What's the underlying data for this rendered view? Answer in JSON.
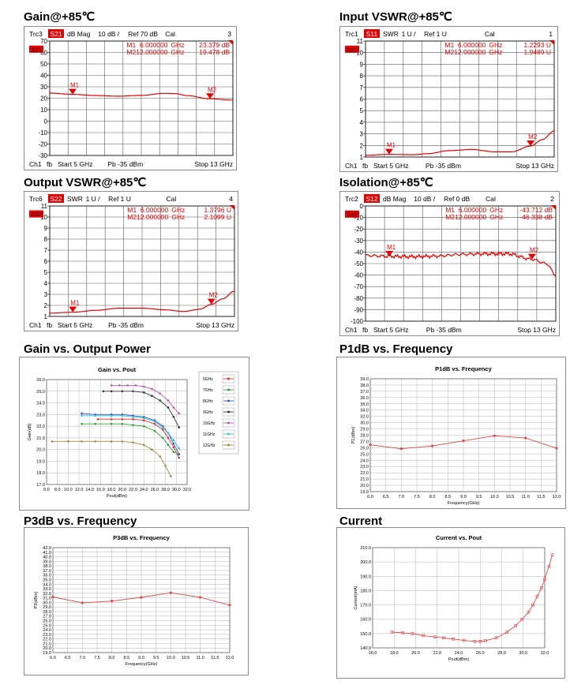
{
  "vna": [
    {
      "key": "gain",
      "title": "Gain@+85℃",
      "trace": "Trc3",
      "param": "S21",
      "format": "dB Mag",
      "scale": "10 dB /",
      "ref": "Ref 70 dB",
      "cal": "Cal",
      "channel_no": "3",
      "ch": "Ch1",
      "fb": "fb",
      "start": "Start  5 GHz",
      "power": "Pb   -35 dBm",
      "stop": "Stop  13 GHz",
      "yticks": [
        "70",
        "60",
        "50",
        "40",
        "30",
        "20",
        "10",
        "0",
        "-10",
        "-20",
        "-30"
      ],
      "ymax": 70,
      "ymin": -30,
      "markers": [
        {
          "label": "M1",
          "freq": "6.000000  GHz",
          "val": "23.379  dB",
          "x": 6,
          "y": 23.379
        },
        {
          "label": "M2",
          "freq": "12.000000  GHz",
          "val": "19.478  dB",
          "x": 12,
          "y": 19.478
        }
      ],
      "trace_points": [
        [
          5,
          24.5
        ],
        [
          6,
          23.4
        ],
        [
          7,
          22.4
        ],
        [
          8,
          21.8
        ],
        [
          9,
          22.5
        ],
        [
          10,
          24.3
        ],
        [
          10.5,
          24.0
        ],
        [
          11,
          22.3
        ],
        [
          12,
          19.5
        ],
        [
          13,
          18.4
        ]
      ]
    },
    {
      "key": "ivswr",
      "title": "Input VSWR@+85℃",
      "trace": "Trc1",
      "param": "S11",
      "format": "SWR",
      "scale": "1 U /",
      "ref": "Ref 1 U",
      "cal": "Cal",
      "channel_no": "1",
      "ch": "Ch1",
      "fb": "fb",
      "start": "Start  5 GHz",
      "power": "Pb   -35 dBm",
      "stop": "Stop  13 GHz",
      "yticks": [
        "11",
        "10",
        "9",
        "8",
        "7",
        "6",
        "5",
        "4",
        "3",
        "2",
        "1"
      ],
      "ymax": 11,
      "ymin": 1,
      "markers": [
        {
          "label": "M1",
          "freq": "6.000000  GHz",
          "val": "1.2293  U",
          "x": 6,
          "y": 1.2293
        },
        {
          "label": "M2",
          "freq": "12.000000  GHz",
          "val": "1.9489  U",
          "x": 12,
          "y": 1.9489
        }
      ],
      "trace_points": [
        [
          5,
          1.15
        ],
        [
          6,
          1.23
        ],
        [
          7,
          1.2
        ],
        [
          7.7,
          1.3
        ],
        [
          8.5,
          1.55
        ],
        [
          9.5,
          1.65
        ],
        [
          10.5,
          1.45
        ],
        [
          11.2,
          1.45
        ],
        [
          12,
          1.95
        ],
        [
          12.5,
          2.5
        ],
        [
          13,
          3.25
        ]
      ]
    },
    {
      "key": "ovswr",
      "title": "Output VSWR@+85℃",
      "trace": "Trc6",
      "param": "S22",
      "format": "SWR",
      "scale": "1 U /",
      "ref": "Ref 1 U",
      "cal": "Cal",
      "channel_no": "4",
      "ch": "Ch1",
      "fb": "fb",
      "start": "Start  5 GHz",
      "power": "Pb   -35 dBm",
      "stop": "Stop  13 GHz",
      "yticks": [
        "11",
        "10",
        "9",
        "8",
        "7",
        "6",
        "5",
        "4",
        "3",
        "2",
        "1"
      ],
      "ymax": 11,
      "ymin": 1,
      "markers": [
        {
          "label": "M1",
          "freq": "6.000000  GHz",
          "val": "1.3796  U",
          "x": 6,
          "y": 1.3796
        },
        {
          "label": "M2",
          "freq": "12.000000  GHz",
          "val": "2.1099  U",
          "x": 12,
          "y": 2.1099
        }
      ],
      "trace_points": [
        [
          5,
          1.3
        ],
        [
          6,
          1.38
        ],
        [
          7,
          1.55
        ],
        [
          8,
          1.75
        ],
        [
          9,
          1.75
        ],
        [
          10,
          1.6
        ],
        [
          10.8,
          1.45
        ],
        [
          11.5,
          1.65
        ],
        [
          12,
          2.1
        ],
        [
          12.5,
          2.6
        ],
        [
          13,
          3.3
        ]
      ]
    },
    {
      "key": "iso",
      "title": "Isolation@+85℃",
      "trace": "Trc2",
      "param": "S12",
      "format": "dB Mag",
      "scale": "10 dB /",
      "ref": "Ref 0 dB",
      "cal": "Cal",
      "channel_no": "2",
      "ch": "Ch1",
      "fb": "fb",
      "start": "Start  5 GHz",
      "power": "Pb   -35 dBm",
      "stop": "Stop  13 GHz",
      "yticks": [
        "0",
        "-10",
        "-20",
        "-30",
        "-40",
        "-50",
        "-60",
        "-70",
        "-80",
        "-90",
        "-100"
      ],
      "ymax": 0,
      "ymin": -100,
      "markers": [
        {
          "label": "M1",
          "freq": "6.000000  GHz",
          "val": "-43.712  dB",
          "x": 6,
          "y": -43.712
        },
        {
          "label": "M2",
          "freq": "12.000000  GHz",
          "val": "-46.338  dB",
          "x": 12,
          "y": -46.338
        }
      ],
      "trace_points": [
        [
          5,
          -43
        ],
        [
          6,
          -43.7
        ],
        [
          7,
          -44
        ],
        [
          8,
          -43.5
        ],
        [
          9,
          -42
        ],
        [
          10,
          -41.5
        ],
        [
          11,
          -41.5
        ],
        [
          12,
          -46.3
        ],
        [
          12.6,
          -50
        ],
        [
          13,
          -60
        ]
      ]
    }
  ],
  "chart_data": [
    {
      "key": "gvp",
      "section_title": "Gain vs. Output Power",
      "type": "line",
      "title": "Gain vs. Pout",
      "xlabel": "Pout(dBm)",
      "ylabel": "Gain(dB)",
      "xlim": [
        6,
        32
      ],
      "ylim": [
        17,
        26
      ],
      "xticks": [
        "6.0",
        "8.0",
        "10.0",
        "12.0",
        "14.0",
        "16.0",
        "18.0",
        "20.0",
        "22.0",
        "24.0",
        "26.0",
        "28.0",
        "30.0",
        "32.0"
      ],
      "yticks": [
        "17.0",
        "18.0",
        "19.0",
        "20.0",
        "21.0",
        "22.0",
        "23.0",
        "24.0",
        "25.0",
        "26.0"
      ],
      "legend": "right",
      "series": [
        {
          "name": "6GHz",
          "color": "#e03030",
          "points": [
            [
              15.5,
              22.6
            ],
            [
              18,
              22.6
            ],
            [
              20,
              22.6
            ],
            [
              22,
              22.6
            ],
            [
              24,
              22.5
            ],
            [
              26,
              22.2
            ],
            [
              27.5,
              21.7
            ],
            [
              28.5,
              21.0
            ],
            [
              29.5,
              20.2
            ],
            [
              30.5,
              19.3
            ]
          ]
        },
        {
          "name": "7GHz",
          "color": "#30a030",
          "points": [
            [
              12.5,
              22.2
            ],
            [
              15,
              22.2
            ],
            [
              18,
              22.2
            ],
            [
              20,
              22.2
            ],
            [
              22,
              22.1
            ],
            [
              24,
              22.0
            ],
            [
              26,
              21.6
            ],
            [
              27.5,
              21.0
            ],
            [
              28.5,
              20.4
            ],
            [
              29.5,
              19.8
            ],
            [
              30.5,
              19.6
            ]
          ]
        },
        {
          "name": "8GHz",
          "color": "#3050d0",
          "points": [
            [
              12.5,
              23.1
            ],
            [
              15,
              23.0
            ],
            [
              18,
              23.0
            ],
            [
              20,
              23.0
            ],
            [
              22,
              22.9
            ],
            [
              24,
              22.8
            ],
            [
              26,
              22.5
            ],
            [
              27.5,
              22.0
            ],
            [
              28.5,
              21.4
            ],
            [
              29.5,
              20.5
            ],
            [
              30.5,
              19.6
            ]
          ]
        },
        {
          "name": "9GHz",
          "color": "#333333",
          "points": [
            [
              16.5,
              25.0
            ],
            [
              18,
              25.0
            ],
            [
              20,
              25.0
            ],
            [
              22,
              25.0
            ],
            [
              24,
              24.9
            ],
            [
              25.5,
              24.6
            ],
            [
              27,
              24.2
            ],
            [
              28.5,
              23.6
            ],
            [
              29.5,
              22.8
            ],
            [
              30.5,
              21.9
            ]
          ]
        },
        {
          "name": "10GHz",
          "color": "#c050c0",
          "points": [
            [
              18,
              25.5
            ],
            [
              19.5,
              25.5
            ],
            [
              21,
              25.5
            ],
            [
              22.5,
              25.5
            ],
            [
              24,
              25.4
            ],
            [
              25.5,
              25.2
            ],
            [
              27,
              24.8
            ],
            [
              28.5,
              24.2
            ],
            [
              29.5,
              23.6
            ],
            [
              30.5,
              23.1
            ]
          ]
        },
        {
          "name": "11GHz",
          "color": "#30c0d0",
          "points": [
            [
              12.5,
              22.9
            ],
            [
              15,
              22.9
            ],
            [
              18,
              22.9
            ],
            [
              20,
              22.9
            ],
            [
              22,
              22.8
            ],
            [
              24,
              22.7
            ],
            [
              26,
              22.4
            ],
            [
              27.5,
              21.9
            ],
            [
              28.5,
              21.4
            ],
            [
              29.5,
              20.8
            ],
            [
              30.5,
              20.1
            ]
          ]
        },
        {
          "name": "12GHz",
          "color": "#a08a40",
          "points": [
            [
              7,
              20.7
            ],
            [
              10,
              20.7
            ],
            [
              12.5,
              20.7
            ],
            [
              15,
              20.7
            ],
            [
              18,
              20.7
            ],
            [
              20,
              20.7
            ],
            [
              22,
              20.6
            ],
            [
              24,
              20.4
            ],
            [
              25.5,
              20.0
            ],
            [
              27,
              19.4
            ],
            [
              28,
              18.6
            ],
            [
              29,
              17.7
            ]
          ]
        }
      ]
    },
    {
      "key": "p1db",
      "section_title": "P1dB vs. Frequency",
      "type": "line",
      "title": "P1dB vs. Frequency",
      "xlabel": "Frequency(GHz)",
      "ylabel": "P1(dBm)",
      "xlim": [
        6,
        12
      ],
      "ylim": [
        19,
        39
      ],
      "xticks": [
        "6.0",
        "6.5",
        "7.0",
        "7.5",
        "8.0",
        "8.5",
        "9.0",
        "9.5",
        "10.0",
        "10.5",
        "11.0",
        "11.5",
        "12.0"
      ],
      "yticks": [
        "19.0",
        "20.0",
        "21.0",
        "22.0",
        "23.0",
        "24.0",
        "25.0",
        "26.0",
        "27.0",
        "28.0",
        "29.0",
        "30.0",
        "32.0",
        "34.0",
        "35.0",
        "36.0",
        "37.0",
        "38.0",
        "39.0"
      ],
      "points": [
        [
          6,
          27.3
        ],
        [
          7,
          26.6
        ],
        [
          8,
          27.1
        ],
        [
          9,
          28.0
        ],
        [
          10,
          28.9
        ],
        [
          11,
          28.5
        ],
        [
          12,
          26.7
        ]
      ]
    },
    {
      "key": "p3db",
      "section_title": "P3dB vs. Frequency",
      "type": "line",
      "title": "P3dB vs. Frequency",
      "xlabel": "Frequency(GHz)",
      "ylabel": "P3(dBm)",
      "xlim": [
        6,
        12
      ],
      "ylim": [
        19,
        42
      ],
      "xticks": [
        "6.0",
        "6.5",
        "7.0",
        "7.5",
        "8.0",
        "8.5",
        "9.0",
        "9.5",
        "10.0",
        "10.5",
        "11.0",
        "11.5",
        "12.0"
      ],
      "yticks": [
        "19.0",
        "20.0",
        "21.0",
        "22.0",
        "23.0",
        "24.0",
        "25.0",
        "26.0",
        "27.0",
        "28.0",
        "29.0",
        "30.0",
        "31.0",
        "32.0",
        "33.0",
        "34.0",
        "35.0",
        "36.0",
        "37.0",
        "38.0",
        "39.0",
        "40.0",
        "41.0",
        "42.0"
      ],
      "points": [
        [
          6,
          31.2
        ],
        [
          7,
          29.9
        ],
        [
          8,
          30.3
        ],
        [
          9,
          31.1
        ],
        [
          10,
          32.1
        ],
        [
          11,
          31.1
        ],
        [
          12,
          29.4
        ]
      ]
    },
    {
      "key": "curr",
      "section_title": "Current",
      "type": "line",
      "title": "Current vs. Pout",
      "xlabel": "Pout(dBm)",
      "ylabel": "Current(mA)",
      "xlim": [
        16,
        32
      ],
      "ylim": [
        140,
        210
      ],
      "xticks": [
        "16.0",
        "18.0",
        "20.0",
        "22.0",
        "24.0",
        "26.0",
        "28.0",
        "30.0",
        "32.0"
      ],
      "yticks": [
        "140.0",
        "150.0",
        "160.0",
        "170.0",
        "180.0",
        "190.0",
        "200.0",
        "210.0"
      ],
      "points": [
        [
          17.8,
          151
        ],
        [
          18.8,
          150.5
        ],
        [
          19.7,
          150
        ],
        [
          20.7,
          148.6
        ],
        [
          21.8,
          147.6
        ],
        [
          22.6,
          147
        ],
        [
          23.5,
          146.2
        ],
        [
          24.5,
          145.2
        ],
        [
          25.5,
          144.5
        ],
        [
          26,
          144.5
        ],
        [
          26.5,
          145
        ],
        [
          27.5,
          147
        ],
        [
          28.5,
          151
        ],
        [
          29.3,
          155.5
        ],
        [
          29.9,
          160
        ],
        [
          30.5,
          165
        ],
        [
          30.9,
          170
        ],
        [
          31.3,
          176
        ],
        [
          31.7,
          182
        ],
        [
          32.0,
          188
        ],
        [
          32.4,
          197
        ],
        [
          32.7,
          205
        ]
      ]
    }
  ],
  "colors": {
    "trace": "#e60000",
    "marker_text": "#e60000",
    "grid_vna": "#5a5a5a",
    "grid_plot": "#b4b4b4",
    "plot_line": "#e04848"
  }
}
